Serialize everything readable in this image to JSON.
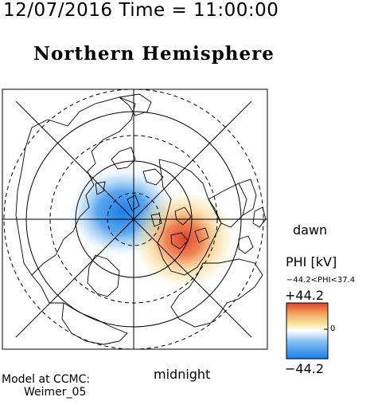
{
  "header": {
    "datetime": "12/07/2016 Time = 11:00:00",
    "title": "Northern Hemisphere"
  },
  "map": {
    "dawn_label": "dawn",
    "midnight_label": "midnight"
  },
  "colorbar": {
    "variable_label": "PHI [kV]",
    "range_text": "−44.2<PHI<37.4",
    "max_label": "+44.2",
    "zero_label": "0",
    "min_label": "−44.2",
    "colors": [
      "#1a7ee8",
      "#7fbff2",
      "#ffffff",
      "#f5e7a0",
      "#f3a05a",
      "#e0402a"
    ]
  },
  "model": {
    "line1": "Model at CCMC:",
    "line2": "Weimer_05"
  }
}
